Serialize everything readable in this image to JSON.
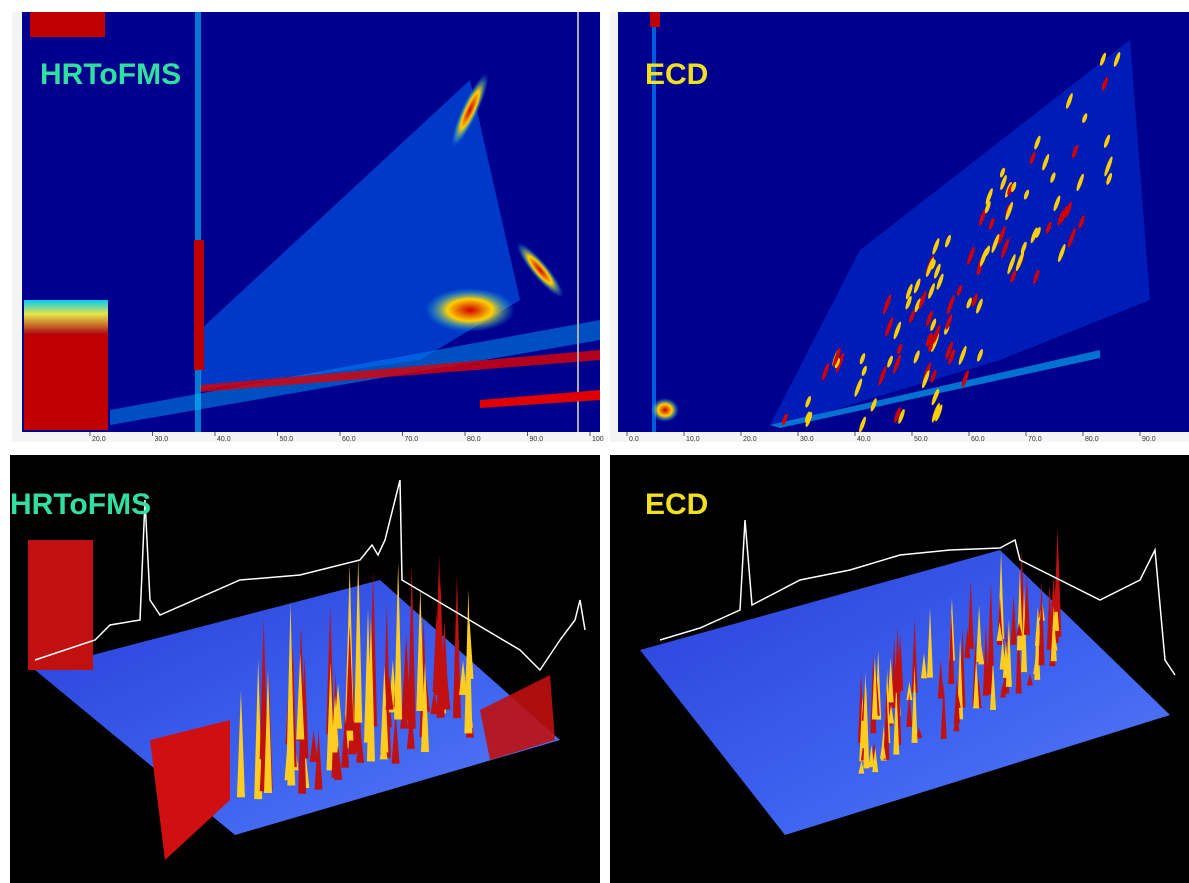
{
  "panels": [
    {
      "label": "HRToFMS",
      "x_ticks": [
        "20.0",
        "30.0",
        "40.0",
        "50.0",
        "60.0",
        "70.0",
        "80.0",
        "90.0",
        "100"
      ]
    },
    {
      "label": "ECD",
      "x_ticks": [
        "0.0",
        "10.0",
        "20.0",
        "30.0",
        "40.0",
        "50.0",
        "60.0",
        "70.0",
        "80.0",
        "90.0"
      ]
    },
    {
      "label": "HRToFMS"
    },
    {
      "label": "ECD"
    }
  ]
}
